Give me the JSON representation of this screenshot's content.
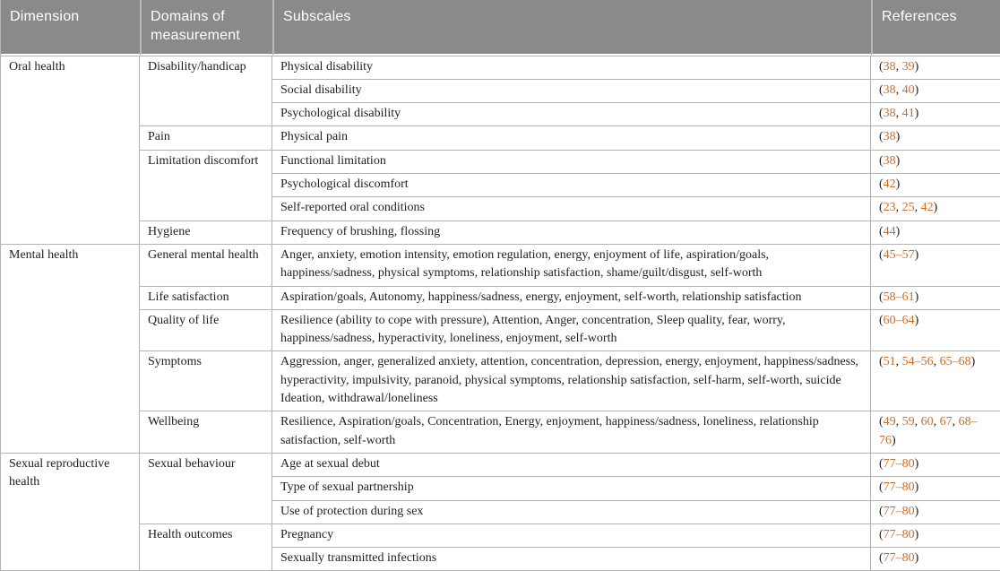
{
  "table": {
    "columns": [
      {
        "label": "Dimension"
      },
      {
        "label": "Domains of measurement"
      },
      {
        "label": "Subscales"
      },
      {
        "label": "References"
      }
    ],
    "colors": {
      "header_background": "#8a8a8a",
      "header_text": "#ffffff",
      "border": "#b4b4b4",
      "reference_accent": "#c86e2d",
      "body_text": "#1f1f1f"
    },
    "groups": [
      {
        "dimension": "Oral health",
        "domains": [
          {
            "name": "Disability/handicap",
            "rows": [
              {
                "subscale": "Physical disability",
                "references": "(38, 39)"
              },
              {
                "subscale": "Social disability",
                "references": "(38, 40)"
              },
              {
                "subscale": "Psychological disability",
                "references": "(38, 41)"
              }
            ]
          },
          {
            "name": "Pain",
            "rows": [
              {
                "subscale": "Physical pain",
                "references": "(38)"
              }
            ]
          },
          {
            "name": "Limitation discomfort",
            "rows": [
              {
                "subscale": "Functional limitation",
                "references": "(38)"
              },
              {
                "subscale": "Psychological discomfort",
                "references": "(42)"
              },
              {
                "subscale": "Self-reported oral conditions",
                "references": "(23, 25, 42)"
              }
            ]
          },
          {
            "name": "Hygiene",
            "rows": [
              {
                "subscale": "Frequency of brushing, flossing",
                "references": "(44)"
              }
            ]
          }
        ]
      },
      {
        "dimension": "Mental health",
        "domains": [
          {
            "name": "General mental health",
            "rows": [
              {
                "subscale": "Anger, anxiety, emotion intensity, emotion regulation, energy, enjoyment of life, aspiration/goals, happiness/sadness, physical symptoms, relationship satisfaction, shame/guilt/disgust, self-worth",
                "references": "(45–57)"
              }
            ]
          },
          {
            "name": "Life satisfaction",
            "rows": [
              {
                "subscale": "Aspiration/goals, Autonomy, happiness/sadness, energy, enjoyment, self-worth, relationship satisfaction",
                "references": "(58–61)"
              }
            ]
          },
          {
            "name": "Quality of life",
            "rows": [
              {
                "subscale": "Resilience (ability to cope with pressure), Attention, Anger, concentration, Sleep quality, fear, worry, happiness/sadness, hyperactivity, loneliness, enjoyment, self-worth",
                "references": "(60–64)"
              }
            ]
          },
          {
            "name": "Symptoms",
            "rows": [
              {
                "subscale": "Aggression, anger, generalized anxiety, attention, concentration, depression, energy, enjoyment, happiness/sadness, hyperactivity, impulsivity, paranoid, physical symptoms, relationship satisfaction, self-harm, self-worth, suicide Ideation, withdrawal/loneliness",
                "references": "(51, 54–56, 65–68)"
              }
            ]
          },
          {
            "name": "Wellbeing",
            "rows": [
              {
                "subscale": "Resilience, Aspiration/goals, Concentration, Energy, enjoyment, happiness/sadness, loneliness, relationship satisfaction, self-worth",
                "references": "(49, 59, 60, 67, 68–76)"
              }
            ]
          }
        ]
      },
      {
        "dimension": "Sexual reproductive health",
        "domains": [
          {
            "name": "Sexual behaviour",
            "rows": [
              {
                "subscale": "Age at sexual debut",
                "references": "(77–80)"
              },
              {
                "subscale": "Type of sexual partnership",
                "references": "(77–80)"
              },
              {
                "subscale": "Use of protection during sex",
                "references": "(77–80)"
              }
            ]
          },
          {
            "name": "Health outcomes",
            "rows": [
              {
                "subscale": "Pregnancy",
                "references": "(77–80)"
              },
              {
                "subscale": "Sexually transmitted infections",
                "references": "(77–80)"
              }
            ]
          }
        ]
      }
    ]
  }
}
